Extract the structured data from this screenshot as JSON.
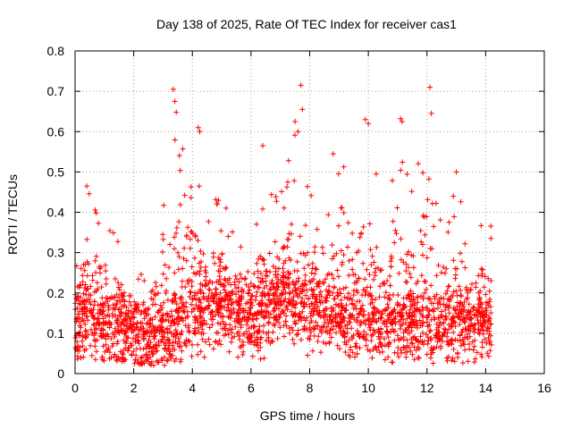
{
  "chart_data": {
    "type": "scatter",
    "title": "Day 138 of 2025, Rate Of TEC Index for receiver cas1",
    "xlabel": "GPS time / hours",
    "ylabel": "ROTI / TECUs",
    "xlim": [
      0,
      16
    ],
    "ylim": [
      0,
      0.8
    ],
    "xticks": [
      0,
      2,
      4,
      6,
      8,
      10,
      12,
      14,
      16
    ],
    "xtick_labels": [
      "0",
      "2",
      "4",
      "6",
      "8",
      "10",
      "12",
      "14",
      "16"
    ],
    "yticks": [
      0,
      0.1,
      0.2,
      0.3,
      0.4,
      0.5,
      0.6,
      0.7,
      0.8
    ],
    "ytick_labels": [
      "0",
      "0.1",
      "0.2",
      "0.3",
      "0.4",
      "0.5",
      "0.6",
      "0.7",
      "0.8"
    ],
    "grid": true,
    "marker": "+",
    "color": "#ff0000",
    "data_time_range_hours": [
      0.0,
      14.2
    ],
    "series": [
      {
        "name": "ROTI",
        "approx_profile": {
          "x": [
            0.0,
            0.5,
            1.0,
            1.5,
            2.0,
            2.5,
            3.0,
            3.5,
            4.0,
            4.5,
            5.0,
            5.5,
            6.0,
            6.5,
            7.0,
            7.5,
            8.0,
            8.5,
            9.0,
            9.5,
            10.0,
            10.5,
            11.0,
            11.5,
            12.0,
            12.5,
            13.0,
            13.5,
            14.0,
            14.2
          ],
          "typical": [
            0.12,
            0.14,
            0.12,
            0.1,
            0.09,
            0.08,
            0.09,
            0.12,
            0.15,
            0.15,
            0.16,
            0.14,
            0.13,
            0.14,
            0.17,
            0.17,
            0.16,
            0.15,
            0.14,
            0.13,
            0.12,
            0.11,
            0.12,
            0.13,
            0.12,
            0.11,
            0.12,
            0.12,
            0.11,
            0.1
          ],
          "upper_envelope": [
            0.38,
            0.45,
            0.4,
            0.35,
            0.3,
            0.25,
            0.42,
            0.67,
            0.55,
            0.45,
            0.47,
            0.35,
            0.4,
            0.48,
            0.45,
            0.65,
            0.55,
            0.48,
            0.55,
            0.45,
            0.62,
            0.4,
            0.62,
            0.45,
            0.7,
            0.4,
            0.5,
            0.35,
            0.42,
            0.38
          ],
          "lower_envelope": [
            0.03,
            0.03,
            0.03,
            0.03,
            0.02,
            0.02,
            0.02,
            0.02,
            0.03,
            0.03,
            0.03,
            0.03,
            0.03,
            0.03,
            0.04,
            0.04,
            0.04,
            0.03,
            0.03,
            0.03,
            0.03,
            0.02,
            0.02,
            0.02,
            0.02,
            0.02,
            0.02,
            0.02,
            0.03,
            0.03
          ]
        },
        "peak_points": {
          "x": [
            3.35,
            3.4,
            3.45,
            4.2,
            4.25,
            6.4,
            7.7,
            7.75,
            7.5,
            9.9,
            10.0,
            11.1,
            11.15,
            12.1,
            12.15,
            13.0,
            0.4,
            7.6,
            8.8,
            12.9
          ],
          "y": [
            0.705,
            0.675,
            0.648,
            0.61,
            0.6,
            0.565,
            0.715,
            0.655,
            0.625,
            0.63,
            0.62,
            0.632,
            0.625,
            0.71,
            0.645,
            0.5,
            0.465,
            0.6,
            0.545,
            0.44
          ]
        }
      }
    ]
  }
}
